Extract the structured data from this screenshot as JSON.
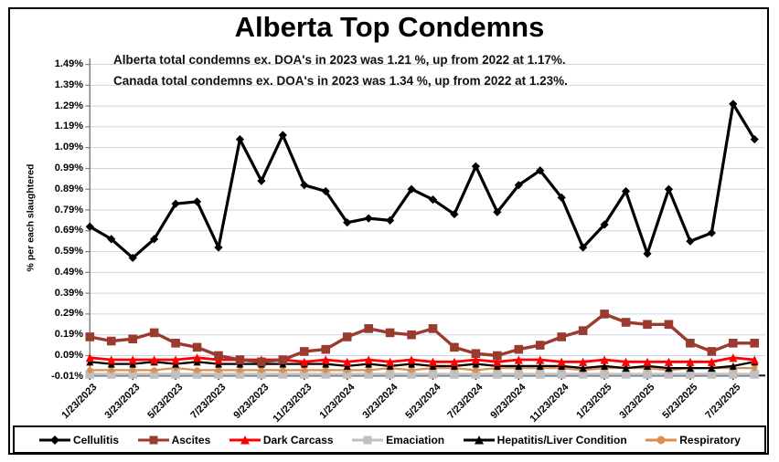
{
  "title": "Alberta Top Condemns",
  "annotations": {
    "line1": "Alberta total condemns ex. DOA's in 2023 was 1.21 %, up from 2022 at 1.17%.",
    "line2": "Canada total condemns ex. DOA's in 2023 was 1.34 %, up from 2022 at 1.23%."
  },
  "chart_data": {
    "type": "line",
    "title": "Alberta Top Condemns",
    "ylabel": "% per each slaughtered",
    "xlabel": "",
    "ylim": [
      -0.01,
      1.49
    ],
    "ytick_step": 0.1,
    "ytick_labels": [
      "1.49%",
      "1.39%",
      "1.29%",
      "1.19%",
      "1.09%",
      "0.99%",
      "0.89%",
      "0.79%",
      "0.69%",
      "0.59%",
      "0.49%",
      "0.39%",
      "0.29%",
      "0.19%",
      "0.09%",
      "-0.01%"
    ],
    "n_points": 32,
    "xtick_every": 2,
    "xtick_labels": [
      "1/23/2023",
      "3/23/2023",
      "5/23/2023",
      "7/23/2023",
      "9/23/2023",
      "11/23/2023",
      "1/23/2024",
      "3/23/2024",
      "5/23/2024",
      "7/23/2024",
      "9/23/2024",
      "11/23/2024",
      "1/23/2025",
      "3/23/2025",
      "5/23/2025",
      "7/23/2025"
    ],
    "grid": true,
    "gridline_color": "#C7D7E9",
    "axis_color": "#7F7F7F",
    "legend_position": "bottom",
    "series": [
      {
        "name": "Cellulitis",
        "color": "#000000",
        "marker": "diamond",
        "values": [
          0.71,
          0.65,
          0.56,
          0.65,
          0.82,
          0.83,
          0.61,
          1.13,
          0.93,
          1.15,
          0.91,
          0.88,
          0.73,
          0.75,
          0.74,
          0.89,
          0.84,
          0.77,
          1.0,
          0.78,
          0.91,
          0.98,
          0.85,
          0.61,
          0.72,
          0.88,
          0.58,
          0.89,
          0.64,
          0.68,
          1.3,
          1.13
        ]
      },
      {
        "name": "Ascites",
        "color": "#9B3A2F",
        "marker": "square",
        "values": [
          0.18,
          0.16,
          0.17,
          0.2,
          0.15,
          0.13,
          0.09,
          0.07,
          0.06,
          0.07,
          0.11,
          0.12,
          0.18,
          0.22,
          0.2,
          0.19,
          0.22,
          0.13,
          0.1,
          0.09,
          0.12,
          0.14,
          0.18,
          0.21,
          0.29,
          0.25,
          0.24,
          0.24,
          0.15,
          0.11,
          0.15,
          0.15
        ]
      },
      {
        "name": "Dark Carcass",
        "color": "#FF0000",
        "marker": "triangle",
        "values": [
          0.08,
          0.07,
          0.07,
          0.07,
          0.07,
          0.08,
          0.07,
          0.07,
          0.07,
          0.07,
          0.06,
          0.07,
          0.06,
          0.07,
          0.06,
          0.07,
          0.06,
          0.06,
          0.07,
          0.06,
          0.07,
          0.07,
          0.06,
          0.06,
          0.07,
          0.06,
          0.06,
          0.06,
          0.06,
          0.06,
          0.08,
          0.07
        ]
      },
      {
        "name": "Emaciation",
        "color": "#C0C0C0",
        "marker": "square",
        "values": [
          0.0,
          0.0,
          0.0,
          0.0,
          0.0,
          0.0,
          0.0,
          0.0,
          0.0,
          0.0,
          0.0,
          0.0,
          0.0,
          0.0,
          0.0,
          0.0,
          0.0,
          0.0,
          0.0,
          0.0,
          0.0,
          0.0,
          0.0,
          0.0,
          0.0,
          0.0,
          0.0,
          0.0,
          0.0,
          0.0,
          0.0,
          0.0
        ]
      },
      {
        "name": "Hepatitis/Liver Condition",
        "color": "#000000",
        "marker": "triangle",
        "values": [
          0.06,
          0.05,
          0.05,
          0.06,
          0.05,
          0.06,
          0.05,
          0.05,
          0.05,
          0.05,
          0.05,
          0.05,
          0.04,
          0.05,
          0.04,
          0.05,
          0.04,
          0.04,
          0.05,
          0.04,
          0.04,
          0.04,
          0.04,
          0.03,
          0.04,
          0.03,
          0.04,
          0.03,
          0.03,
          0.03,
          0.04,
          0.06
        ]
      },
      {
        "name": "Respiratory",
        "color": "#DD8D4E",
        "marker": "circle",
        "values": [
          0.02,
          0.02,
          0.02,
          0.02,
          0.03,
          0.02,
          0.02,
          0.02,
          0.02,
          0.02,
          0.02,
          0.02,
          0.02,
          0.02,
          0.03,
          0.02,
          0.03,
          0.03,
          0.02,
          0.03,
          0.03,
          0.03,
          0.03,
          0.02,
          0.03,
          0.03,
          0.03,
          0.02,
          0.03,
          0.03,
          0.03,
          0.03
        ]
      }
    ]
  }
}
